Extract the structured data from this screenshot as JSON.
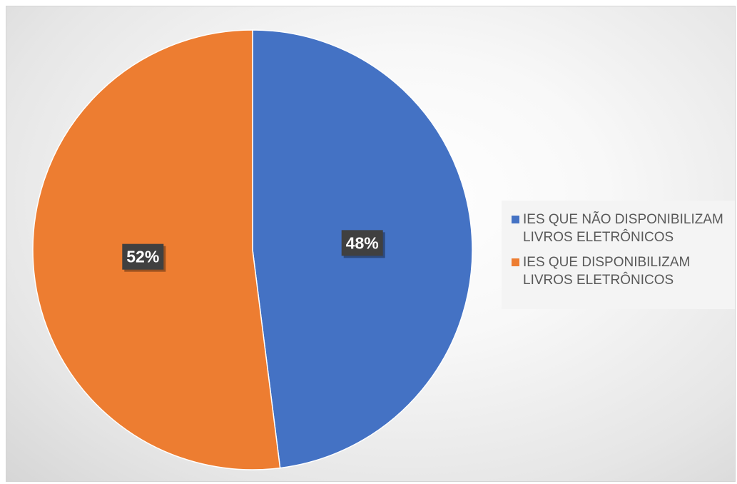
{
  "chart_data": {
    "type": "pie",
    "title": "",
    "slices": [
      {
        "name": "IES QUE NÃO DISPONIBILIZAM LIVROS ELETRÔNICOS",
        "value": 48,
        "label": "48%",
        "color": "#4472C4"
      },
      {
        "name": "IES QUE DISPONIBILIZAM LIVROS ELETRÔNICOS",
        "value": 52,
        "label": "52%",
        "color": "#ED7D31"
      }
    ],
    "start": "12 o'clock",
    "direction": "clockwise",
    "legend": {
      "position": "right",
      "entries": [
        "IES QUE NÃO DISPONIBILIZAM\nLIVROS ELETRÔNICOS",
        "IES QUE DISPONIBILIZAM\nLIVROS ELETRÔNICOS"
      ]
    },
    "data_label_style": {
      "background": "#404040",
      "text_color": "#ffffff"
    }
  }
}
